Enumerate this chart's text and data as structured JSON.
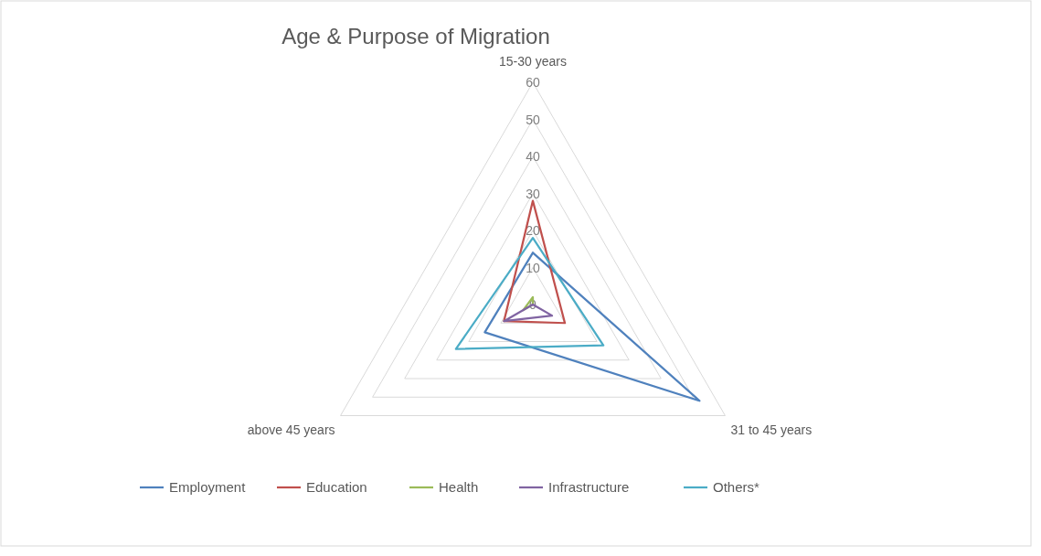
{
  "chart_data": {
    "type": "radar",
    "title": "Age & Purpose of Migration",
    "categories": [
      "15-30 years",
      "31 to 45 years",
      "above 45 years"
    ],
    "ylim": [
      0,
      60
    ],
    "yticks": [
      0,
      10,
      20,
      30,
      40,
      50,
      60
    ],
    "legend": "bottom",
    "marker": "none",
    "grid": true,
    "series": [
      {
        "name": "Employment",
        "color": "#4f81bd",
        "values": [
          14,
          52,
          15
        ]
      },
      {
        "name": "Education",
        "color": "#c0504d",
        "values": [
          28,
          10,
          9
        ]
      },
      {
        "name": "Health",
        "color": "#9bbb59",
        "values": [
          2,
          0,
          3
        ]
      },
      {
        "name": "Infrastructure",
        "color": "#8064a2",
        "values": [
          0,
          6,
          9
        ]
      },
      {
        "name": "Others*",
        "color": "#4bacc6",
        "values": [
          18,
          22,
          24
        ]
      }
    ]
  }
}
